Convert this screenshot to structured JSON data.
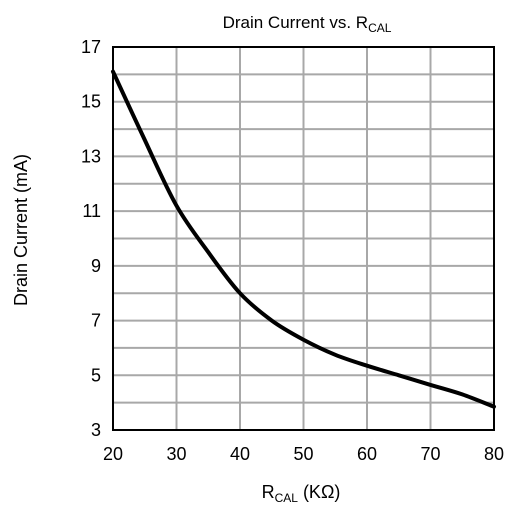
{
  "chart_data": {
    "type": "line",
    "title": {
      "main": "Drain Current vs. R",
      "sub": "CAL"
    },
    "xlabel": {
      "main": "R",
      "sub": "CAL",
      "rest": " (KΩ)"
    },
    "ylabel": "Drain Current (mA)",
    "xlim": [
      20,
      80
    ],
    "ylim": [
      3,
      17
    ],
    "x_ticks": [
      20,
      30,
      40,
      50,
      60,
      70,
      80
    ],
    "y_ticks": [
      3,
      5,
      7,
      9,
      11,
      13,
      15,
      17
    ],
    "grid": true,
    "minor_y_gridlines": [
      4,
      6,
      8,
      10,
      12,
      14,
      16
    ],
    "line_color": "#000000",
    "grid_color": "#a8a8a8",
    "series": [
      {
        "x": [
          20,
          25,
          30,
          35,
          40,
          45,
          50,
          55,
          60,
          65,
          70,
          75,
          80
        ],
        "values": [
          16.1,
          13.6,
          11.2,
          9.5,
          8.0,
          7.0,
          6.3,
          5.75,
          5.35,
          5.0,
          4.65,
          4.3,
          3.85
        ]
      }
    ]
  }
}
